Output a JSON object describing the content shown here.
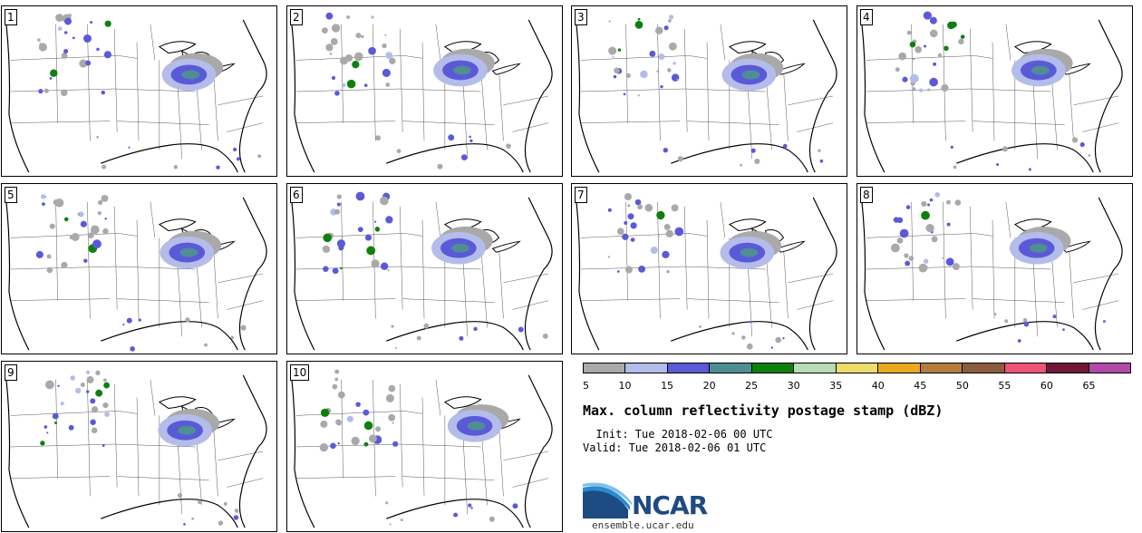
{
  "members": [
    {
      "label": "1"
    },
    {
      "label": "2"
    },
    {
      "label": "3"
    },
    {
      "label": "4"
    },
    {
      "label": "5"
    },
    {
      "label": "6"
    },
    {
      "label": "7"
    },
    {
      "label": "8"
    },
    {
      "label": "9"
    },
    {
      "label": "10"
    }
  ],
  "colorbar": {
    "colors": [
      "#a9a9a9",
      "#b4bcea",
      "#5a5ad8",
      "#4e8e94",
      "#0f8010",
      "#b8dcb4",
      "#ecdc6c",
      "#eaa820",
      "#b47c3c",
      "#8c5c40",
      "#ec5478",
      "#6e1838",
      "#b04ca8"
    ],
    "ticks": [
      "5",
      "10",
      "15",
      "20",
      "25",
      "30",
      "35",
      "40",
      "45",
      "50",
      "55",
      "60",
      "65"
    ]
  },
  "title": "Max. column reflectivity postage stamp (dBZ)",
  "init_text": "  Init: Tue 2018-02-06 00 UTC",
  "valid_text": "Valid: Tue 2018-02-06 01 UTC",
  "logo": {
    "text": "NCAR",
    "url_text": "ensemble.ucar.edu",
    "color": "#1e4b82",
    "accent": "#2a8bd0"
  }
}
